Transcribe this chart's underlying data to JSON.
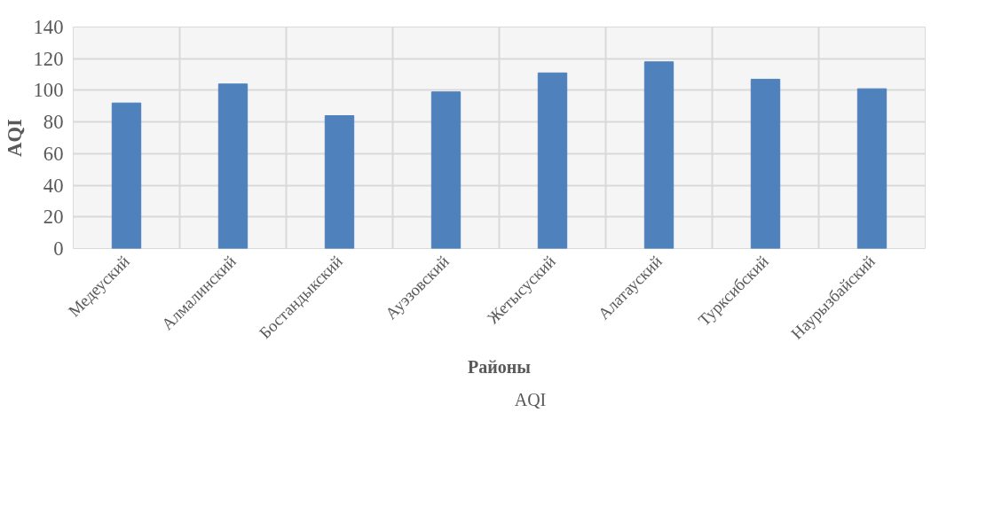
{
  "chart_data": {
    "type": "bar",
    "xlabel": "Районы",
    "ylabel": "AQI",
    "categories": [
      "Медеуский",
      "Алмалинский",
      "Бостандыкский",
      "Ауэзовский",
      "Жетысуский",
      "Алатауский",
      "Турксибский",
      "Наурызбайский"
    ],
    "series": [
      {
        "name": "AQI",
        "color": "#4f81bd",
        "values": [
          92,
          104,
          84,
          99,
          111,
          118,
          107,
          101
        ]
      }
    ],
    "ylim": [
      0,
      140
    ],
    "yticks": [
      0,
      20,
      40,
      60,
      80,
      100,
      120,
      140
    ],
    "grid": true,
    "legend": "bottom"
  }
}
